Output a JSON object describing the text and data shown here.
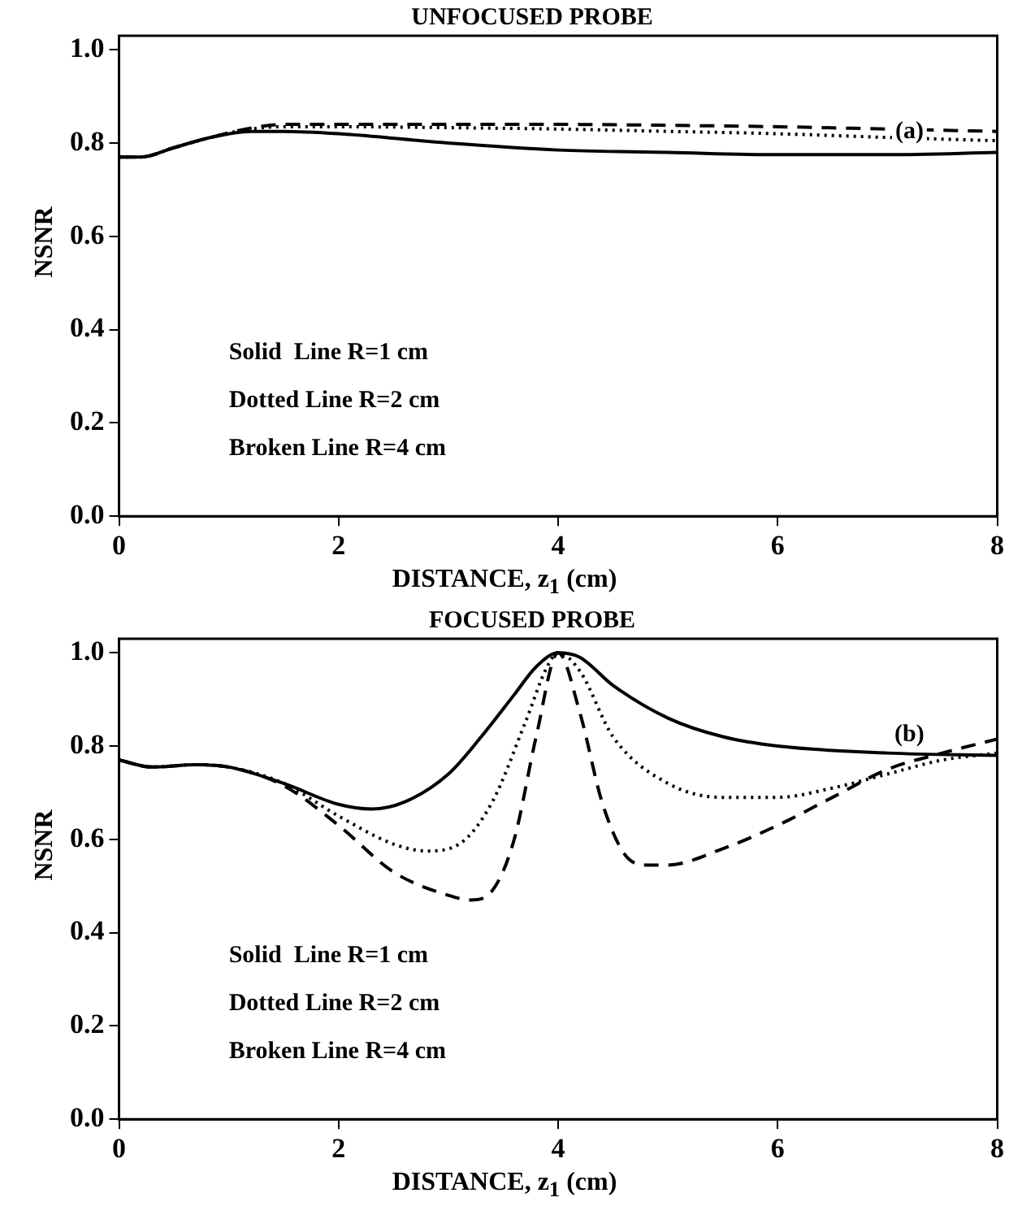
{
  "chart_data": [
    {
      "type": "line",
      "title": "UNFOCUSED PROBE",
      "xlabel": "DISTANCE, z$_{1}$ (cm)",
      "ylabel": "NSNR",
      "annotations": [
        "Solid  Line R=1 cm",
        "Dotted Line R=2 cm",
        "Broken Line R=4 cm",
        "(a)"
      ],
      "xlim": [
        0,
        8
      ],
      "xticks": [
        0,
        2,
        4,
        6,
        8
      ],
      "ylim": [
        0,
        1.03
      ],
      "yticks": [
        {
          "value": 0,
          "label": "0.0"
        },
        {
          "value": 0.2,
          "label": "0.2"
        },
        {
          "value": 0.4,
          "label": "0.4"
        },
        {
          "value": 0.6,
          "label": "0.6"
        },
        {
          "value": 0.8,
          "label": "0.8"
        },
        {
          "value": 1,
          "label": "1.0"
        }
      ],
      "grid": false,
      "marker": "none",
      "series": [
        {
          "color": "#000000",
          "line_style": "solid",
          "x": [
            0,
            0.2,
            0.5,
            0.8,
            1.2,
            1.5,
            2,
            3,
            4,
            5,
            6,
            7,
            8
          ],
          "values": [
            0.77,
            0.77,
            0.79,
            0.81,
            0.825,
            0.825,
            0.82,
            0.8,
            0.785,
            0.78,
            0.775,
            0.775,
            0.78
          ]
        },
        {
          "color": "#000000",
          "line_style": "dotted",
          "x": [
            0,
            0.2,
            0.5,
            0.8,
            1.2,
            1.5,
            2,
            3,
            4,
            5,
            6,
            7,
            8
          ],
          "values": [
            0.77,
            0.77,
            0.79,
            0.81,
            0.83,
            0.835,
            0.835,
            0.833,
            0.83,
            0.825,
            0.82,
            0.812,
            0.805
          ]
        },
        {
          "color": "#000000",
          "line_style": "dashed",
          "x": [
            0,
            0.2,
            0.5,
            0.8,
            1.2,
            1.5,
            2,
            3,
            4,
            5,
            6,
            7,
            8
          ],
          "values": [
            0.77,
            0.77,
            0.79,
            0.81,
            0.832,
            0.84,
            0.84,
            0.84,
            0.84,
            0.838,
            0.835,
            0.83,
            0.825
          ]
        }
      ]
    },
    {
      "type": "line",
      "title": "FOCUSED PROBE",
      "xlabel": "DISTANCE, z$_{1}$ (cm)",
      "ylabel": "NSNR",
      "annotations": [
        "Solid  Line R=1 cm",
        "Dotted Line R=2 cm",
        "Broken Line R=4 cm",
        "(b)"
      ],
      "xlim": [
        0,
        8
      ],
      "xticks": [
        0,
        2,
        4,
        6,
        8
      ],
      "ylim": [
        0,
        1.03
      ],
      "yticks": [
        {
          "value": 0,
          "label": "0.0"
        },
        {
          "value": 0.2,
          "label": "0.2"
        },
        {
          "value": 0.4,
          "label": "0.4"
        },
        {
          "value": 0.6,
          "label": "0.6"
        },
        {
          "value": 0.8,
          "label": "0.8"
        },
        {
          "value": 1,
          "label": "1.0"
        }
      ],
      "grid": false,
      "marker": "none",
      "series": [
        {
          "color": "#000000",
          "line_style": "solid",
          "x": [
            0,
            0.3,
            0.7,
            1,
            1.5,
            2,
            2.3,
            2.6,
            3,
            3.3,
            3.6,
            3.8,
            4,
            4.2,
            4.5,
            5,
            5.5,
            6,
            7,
            8
          ],
          "values": [
            0.77,
            0.755,
            0.76,
            0.755,
            0.72,
            0.675,
            0.665,
            0.68,
            0.74,
            0.82,
            0.91,
            0.97,
            1.0,
            0.99,
            0.93,
            0.86,
            0.82,
            0.8,
            0.785,
            0.78
          ]
        },
        {
          "color": "#000000",
          "line_style": "dotted",
          "x": [
            0,
            0.3,
            0.7,
            1,
            1.5,
            2,
            2.5,
            2.8,
            3.1,
            3.4,
            3.7,
            3.9,
            4,
            4.2,
            4.5,
            5,
            5.5,
            6,
            6.5,
            7,
            7.5,
            8
          ],
          "values": [
            0.77,
            0.755,
            0.76,
            0.755,
            0.72,
            0.65,
            0.59,
            0.575,
            0.59,
            0.68,
            0.85,
            0.97,
            1.0,
            0.96,
            0.82,
            0.72,
            0.69,
            0.69,
            0.71,
            0.74,
            0.77,
            0.785
          ]
        },
        {
          "color": "#000000",
          "line_style": "dashed",
          "x": [
            0,
            0.3,
            0.7,
            1,
            1.5,
            2,
            2.5,
            3,
            3.2,
            3.4,
            3.6,
            3.8,
            4,
            4.2,
            4.4,
            4.6,
            4.8,
            5,
            5.5,
            6,
            6.5,
            7,
            7.5,
            8
          ],
          "values": [
            0.77,
            0.755,
            0.76,
            0.755,
            0.715,
            0.63,
            0.53,
            0.48,
            0.47,
            0.49,
            0.6,
            0.82,
            1.0,
            0.87,
            0.68,
            0.57,
            0.545,
            0.545,
            0.58,
            0.63,
            0.69,
            0.75,
            0.785,
            0.815
          ]
        }
      ]
    }
  ]
}
